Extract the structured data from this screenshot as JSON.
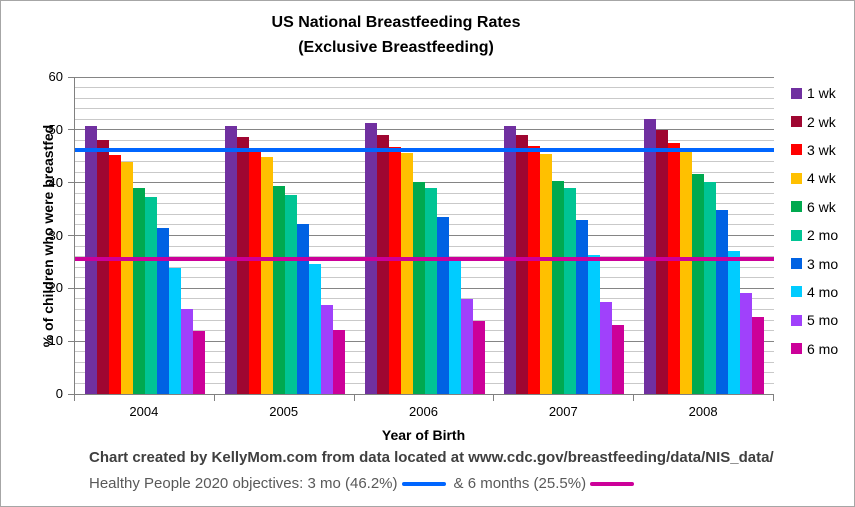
{
  "title": {
    "line1": "US National Breastfeeding Rates",
    "line2": "(Exclusive Breastfeeding)"
  },
  "axes": {
    "y_label": "% of children  who were breastfed",
    "x_label": "Year of Birth",
    "y_ticks": [
      0,
      10,
      20,
      30,
      40,
      50,
      60
    ],
    "y_minor_step": 2
  },
  "chart_data": {
    "type": "bar",
    "title": "US National Breastfeeding Rates (Exclusive Breastfeeding)",
    "xlabel": "Year of Birth",
    "ylabel": "% of children who were breastfed",
    "ylim": [
      0,
      60
    ],
    "grid": "major+minor",
    "legend_position": "right",
    "categories": [
      "2004",
      "2005",
      "2006",
      "2007",
      "2008"
    ],
    "series": [
      {
        "name": "1 wk",
        "color": "#7030A0",
        "values": [
          50.7,
          50.8,
          51.3,
          50.8,
          52.0
        ]
      },
      {
        "name": "2 wk",
        "color": "#9F0631",
        "values": [
          48.1,
          48.7,
          49.0,
          49.0,
          50.0
        ]
      },
      {
        "name": "3 wk",
        "color": "#FF0000",
        "values": [
          45.3,
          46.2,
          46.8,
          46.9,
          47.6
        ]
      },
      {
        "name": "4 wk",
        "color": "#FFC000",
        "values": [
          44.0,
          44.8,
          45.6,
          45.5,
          46.6
        ]
      },
      {
        "name": "6 wk",
        "color": "#00A94F",
        "values": [
          38.9,
          39.3,
          40.1,
          40.4,
          41.7
        ]
      },
      {
        "name": "2 mo",
        "color": "#00C494",
        "values": [
          37.2,
          37.7,
          38.9,
          39.0,
          40.1
        ]
      },
      {
        "name": "3 mo",
        "color": "#0062E3",
        "values": [
          31.5,
          32.1,
          33.5,
          32.9,
          34.8
        ]
      },
      {
        "name": "4 mo",
        "color": "#00CCFF",
        "values": [
          23.9,
          24.6,
          25.9,
          26.4,
          27.1
        ]
      },
      {
        "name": "5 mo",
        "color": "#A041FB",
        "values": [
          16.0,
          16.9,
          18.0,
          17.4,
          19.2
        ]
      },
      {
        "name": "6 mo",
        "color": "#CC0099",
        "values": [
          11.9,
          12.2,
          13.8,
          13.1,
          14.6
        ]
      }
    ],
    "reference_lines": [
      {
        "label": "3 mo objective (46.2%)",
        "value": 46.2,
        "color": "#0066FF"
      },
      {
        "label": "6 months objective (25.5%)",
        "value": 25.5,
        "color": "#CC0099"
      }
    ]
  },
  "captions": {
    "source": "Chart created by KellyMom.com from data located at www.cdc.gov/breastfeeding/data/NIS_data/",
    "objectives_prefix": "Healthy People 2020 objectives: 3 mo (46.2%)",
    "objectives_suffix": "& 6 months (25.5%)"
  }
}
